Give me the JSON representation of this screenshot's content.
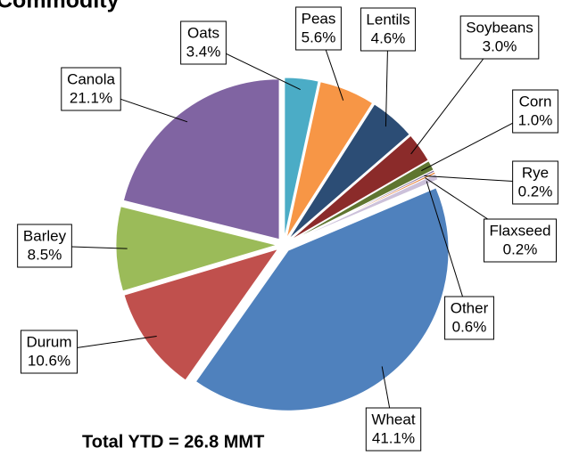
{
  "chart_data": {
    "type": "pie",
    "title": "Commodity",
    "annotation": "Total YTD = 26.8 MMT",
    "categories": [
      "Oats",
      "Peas",
      "Lentils",
      "Soybeans",
      "Corn",
      "Rye",
      "Flaxseed",
      "Other",
      "Wheat",
      "Durum",
      "Barley",
      "Canola"
    ],
    "values": [
      3.4,
      5.6,
      4.6,
      3.0,
      1.0,
      0.2,
      0.2,
      0.6,
      41.1,
      10.6,
      8.5,
      21.1
    ],
    "value_labels": [
      "3.4%",
      "5.6%",
      "4.6%",
      "3.0%",
      "1.0%",
      "0.2%",
      "0.2%",
      "0.6%",
      "41.1%",
      "10.6%",
      "8.5%",
      "21.1%"
    ],
    "colors": [
      "#4bacc6",
      "#f79646",
      "#2c4d75",
      "#8b2b2a",
      "#5f7530",
      "#7f6a99",
      "#e3782d",
      "#ccc1da",
      "#4f81bd",
      "#c0504d",
      "#9bbb59",
      "#8064a2"
    ]
  }
}
